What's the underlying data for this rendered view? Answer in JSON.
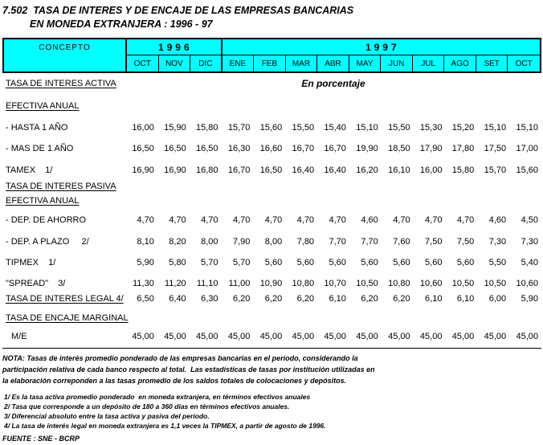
{
  "colors": {
    "header_bg": "#00ffff",
    "border": "#000000"
  },
  "title": {
    "line1": "7.502  TASA DE INTERES Y DE ENCAJE DE LAS EMPRESAS BANCARIAS",
    "line2": "EN MONEDA EXTRANJERA : 1996 - 97"
  },
  "table": {
    "concept_label": "CONCEPTO",
    "unit_note": "En porcentaje",
    "year_groups": [
      {
        "year": "1996",
        "months": [
          "OCT",
          "NOV",
          "DIC"
        ]
      },
      {
        "year": "1997",
        "months": [
          "ENE",
          "FEB",
          "MAR",
          "ABR",
          "MAY",
          "JUN",
          "JUL",
          "AGO",
          "SET",
          "OCT"
        ]
      }
    ],
    "rows": [
      {
        "type": "section",
        "label": "TASA DE INTERES ACTIVA",
        "show_unit_note": true
      },
      {
        "type": "section",
        "label": "EFECTIVA ANUAL"
      },
      {
        "type": "data",
        "label": "- HASTA 1 AÑO",
        "values": [
          "16,00",
          "15,90",
          "15,80",
          "15,70",
          "15,60",
          "15,50",
          "15,40",
          "15,10",
          "15,50",
          "15,30",
          "15,20",
          "15,10",
          "15,10"
        ]
      },
      {
        "type": "data",
        "label": "- MAS DE 1 AÑO",
        "values": [
          "16,50",
          "16,50",
          "16,50",
          "16,30",
          "16,60",
          "16,70",
          "16,70",
          "19,90",
          "18,50",
          "17,90",
          "17,80",
          "17,50",
          "17,00"
        ]
      },
      {
        "type": "data",
        "label": "TAMEX    1/",
        "values": [
          "16,90",
          "16,90",
          "16,80",
          "16,70",
          "16,50",
          "16,40",
          "16,40",
          "16,20",
          "16,10",
          "16,00",
          "15,80",
          "15,70",
          "15,60"
        ]
      },
      {
        "type": "section",
        "label": "TASA DE INTERES PASIVA"
      },
      {
        "type": "section",
        "label": "EFECTIVA ANUAL"
      },
      {
        "type": "data",
        "label": "- DEP. DE AHORRO",
        "values": [
          "4,70",
          "4,70",
          "4,70",
          "4,70",
          "4,70",
          "4,70",
          "4,70",
          "4,60",
          "4,70",
          "4,70",
          "4,70",
          "4,60",
          "4,50"
        ]
      },
      {
        "type": "data",
        "label": "- DEP. A PLAZO     2/",
        "values": [
          "8,10",
          "8,20",
          "8,00",
          "7,90",
          "8,00",
          "7,80",
          "7,70",
          "7,70",
          "7,60",
          "7,50",
          "7,50",
          "7,30",
          "7,30"
        ]
      },
      {
        "type": "data",
        "label": "TIPMEX    1/",
        "values": [
          "5,90",
          "5,80",
          "5,70",
          "5,70",
          "5,60",
          "5,60",
          "5,60",
          "5,60",
          "5,60",
          "5,60",
          "5,60",
          "5,50",
          "5,40"
        ]
      },
      {
        "type": "data",
        "label": "\"SPREAD\"    3/",
        "values": [
          "11,30",
          "11,20",
          "11,10",
          "11,00",
          "10,90",
          "10,80",
          "10,70",
          "10,50",
          "10,80",
          "10,60",
          "10,50",
          "10,50",
          "10,60"
        ]
      },
      {
        "type": "section-data",
        "label": "TASA DE INTERES LEGAL 4/",
        "values": [
          "6,50",
          "6,40",
          "6,30",
          "6,20",
          "6,20",
          "6,20",
          "6,10",
          "6,20",
          "6,20",
          "6,10",
          "6,10",
          "6,00",
          "5,90"
        ]
      },
      {
        "type": "section",
        "label": "TASA DE ENCAJE MARGINAL"
      },
      {
        "type": "data",
        "label": "M/E",
        "indent": true,
        "values": [
          "45,00",
          "45,00",
          "45,00",
          "45,00",
          "45,00",
          "45,00",
          "45,00",
          "45,00",
          "45,00",
          "45,00",
          "45,00",
          "45,00",
          "45,00"
        ]
      }
    ]
  },
  "notes": {
    "nota_lines": [
      "NOTA: Tasas de interés promedio ponderado de las empresas bancarias en el período, considerando la",
      "participación relativa de cada banco respecto al total.  Las estadísticas de tasas por institución utilizadas en",
      "la elaboración correponden a las tasas promedio de los saldos totales de colocaciones y depósitos."
    ],
    "footnotes": [
      "1/ Es la tasa activa promedio ponderado  en moneda extranjera, en términos efectivos anuales",
      "2/ Tasa que corresponde a un depósito de 180 a 360 días en términos efectivos anuales.",
      "3/ Diferencial absoluto entre la tasa activa y pasiva del período.",
      "4/ La tasa de interés legal en moneda extranjera es 1,1 veces la TIPMEX, a partir de agosto de 1996."
    ],
    "source": "FUENTE : SNE - BCRP"
  }
}
